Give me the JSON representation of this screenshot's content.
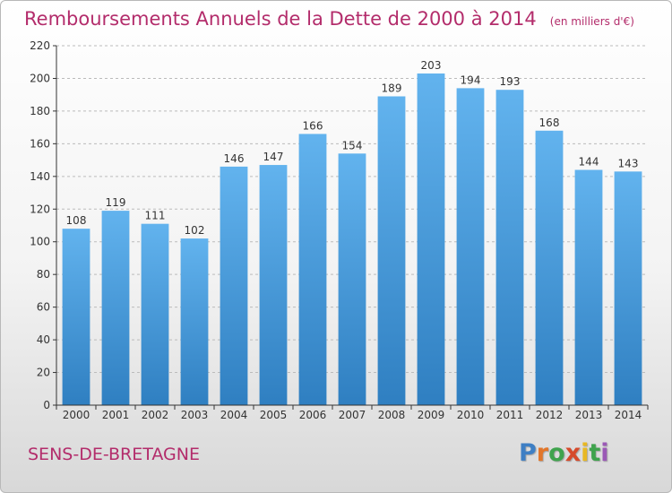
{
  "title": "Remboursements Annuels de la Dette de 2000 à 2014",
  "subtitle": "(en milliers d'€)",
  "commune": "SENS-DE-BRETAGNE",
  "logo": {
    "letters": [
      "P",
      "r",
      "o",
      "x",
      "i",
      "t",
      "i"
    ],
    "colors": [
      "#3e7fc4",
      "#e2762a",
      "#3fa34d",
      "#d64a2b",
      "#e8b823",
      "#3fa34d",
      "#9b59b6"
    ]
  },
  "colors": {
    "accent": "#b32c6b",
    "bar_top": "#62b3ee",
    "bar_bottom": "#2f7fc1",
    "axis": "#333333",
    "grid": "#bbbbbb"
  },
  "chart_data": {
    "type": "bar",
    "categories": [
      "2000",
      "2001",
      "2002",
      "2003",
      "2004",
      "2005",
      "2006",
      "2007",
      "2008",
      "2009",
      "2010",
      "2011",
      "2012",
      "2013",
      "2014"
    ],
    "values": [
      108,
      119,
      111,
      102,
      146,
      147,
      166,
      154,
      189,
      203,
      194,
      193,
      168,
      144,
      143
    ],
    "yticks": [
      "0",
      "20",
      "40",
      "60",
      "80",
      "100",
      "120",
      "140",
      "160",
      "180",
      "200",
      "220"
    ],
    "ylim": [
      0,
      220
    ],
    "grid": true,
    "legend": "none"
  }
}
